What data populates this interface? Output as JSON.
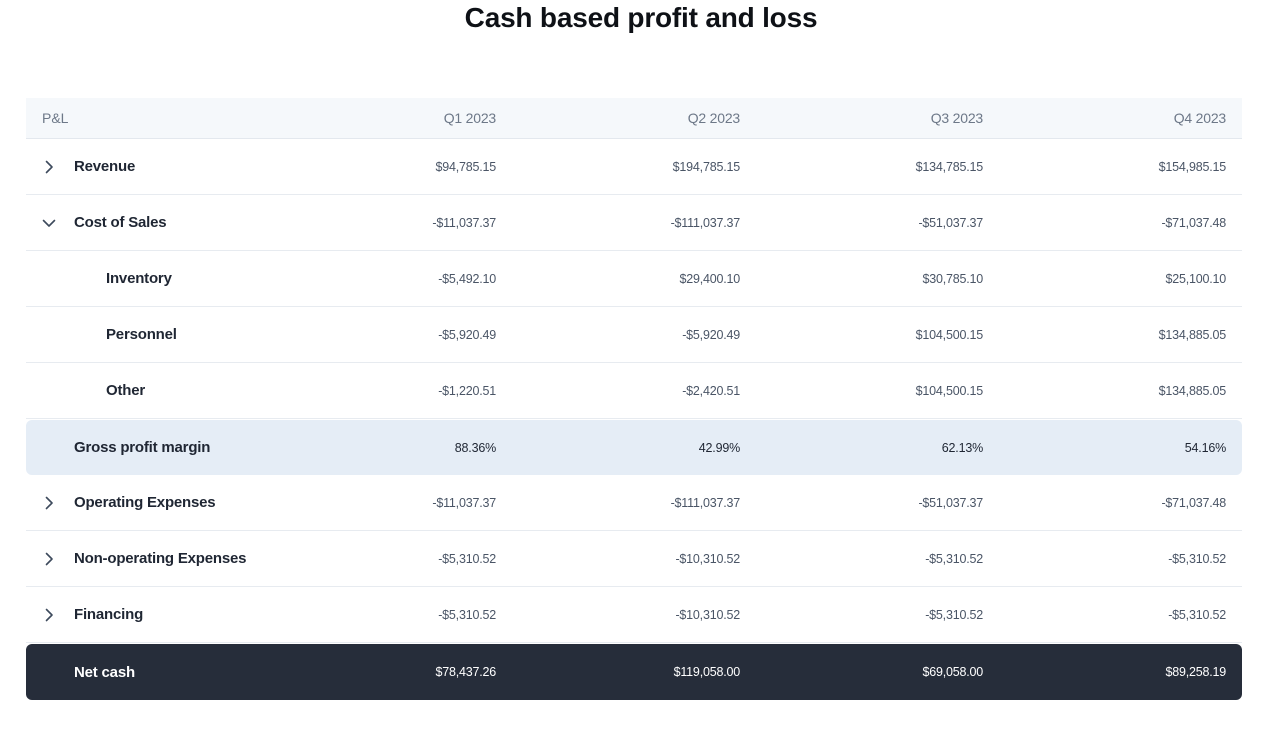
{
  "title": "Cash based profit and loss",
  "columns": [
    "P&L",
    "Q1 2023",
    "Q2 2023",
    "Q3 2023",
    "Q4 2023"
  ],
  "rows": [
    {
      "label": "Revenue",
      "type": "collapsed",
      "values": [
        "$94,785.15",
        "$194,785.15",
        "$134,785.15",
        "$154,985.15"
      ]
    },
    {
      "label": "Cost of Sales",
      "type": "expanded",
      "values": [
        "-$11,037.37",
        "-$111,037.37",
        "-$51,037.37",
        "-$71,037.48"
      ]
    },
    {
      "label": "Inventory",
      "type": "child",
      "values": [
        "-$5,492.10",
        "$29,400.10",
        "$30,785.10",
        "$25,100.10"
      ]
    },
    {
      "label": "Personnel",
      "type": "child",
      "values": [
        "-$5,920.49",
        "-$5,920.49",
        "$104,500.15",
        "$134,885.05"
      ]
    },
    {
      "label": "Other",
      "type": "child",
      "values": [
        "-$1,220.51",
        "-$2,420.51",
        "$104,500.15",
        "$134,885.05"
      ]
    },
    {
      "label": "Gross profit margin",
      "type": "highlight",
      "values": [
        "88.36%",
        "42.99%",
        "62.13%",
        "54.16%"
      ]
    },
    {
      "label": "Operating Expenses",
      "type": "collapsed",
      "values": [
        "-$11,037.37",
        "-$111,037.37",
        "-$51,037.37",
        "-$71,037.48"
      ]
    },
    {
      "label": "Non-operating Expenses",
      "type": "collapsed",
      "values": [
        "-$5,310.52",
        "-$10,310.52",
        "-$5,310.52",
        "-$5,310.52"
      ]
    },
    {
      "label": "Financing",
      "type": "collapsed",
      "values": [
        "-$5,310.52",
        "-$10,310.52",
        "-$5,310.52",
        "-$5,310.52"
      ]
    },
    {
      "label": "Net cash",
      "type": "total",
      "values": [
        "$78,437.26",
        "$119,058.00",
        "$69,058.00",
        "$89,258.19"
      ]
    }
  ],
  "icons": {
    "collapsed": "chevron-right-icon",
    "expanded": "chevron-down-icon"
  },
  "colors": {
    "header_bg": "#f5f8fb",
    "highlight_bg": "#e5edf6",
    "total_bg": "#262d3a",
    "chevron": "#3d4a5c"
  }
}
